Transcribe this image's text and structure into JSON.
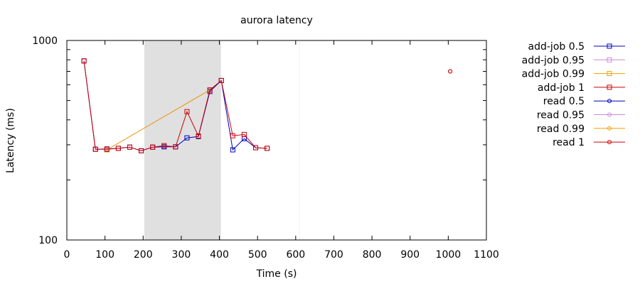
{
  "chart_data": {
    "type": "line",
    "title": "aurora latency",
    "xlabel": "Time (s)",
    "ylabel": "Latency (ms)",
    "xlim": [
      0,
      1100
    ],
    "ylim": [
      100,
      1000
    ],
    "yscale": "log",
    "x_ticks": [
      0,
      100,
      200,
      300,
      400,
      500,
      600,
      700,
      800,
      900,
      1000,
      1100
    ],
    "y_ticks": [
      100,
      1000
    ],
    "grid": false,
    "legend_position": "outside-right",
    "shaded_regions": [
      {
        "x_start": 203,
        "x_end": 404,
        "color": "#e0e0e0"
      }
    ],
    "vertical_lines": [
      {
        "x": 610,
        "color": "#eeeeee"
      }
    ],
    "series": [
      {
        "name": "add-job 0.5",
        "color": "#0000bb",
        "marker": "square",
        "points": [
          [
            45,
            790
          ],
          [
            75,
            285
          ],
          [
            105,
            286
          ],
          [
            135,
            288
          ],
          [
            165,
            292
          ],
          [
            195,
            280
          ],
          [
            225,
            292
          ],
          [
            255,
            293
          ],
          [
            285,
            293
          ],
          [
            315,
            325
          ],
          [
            345,
            330
          ],
          [
            375,
            555
          ],
          [
            405,
            630
          ],
          [
            435,
            283
          ],
          [
            465,
            322
          ],
          [
            495,
            290
          ],
          [
            525,
            288
          ]
        ]
      },
      {
        "name": "add-job 0.95",
        "color": "#cc88dd",
        "marker": "square",
        "points": [
          [
            105,
            283
          ],
          [
            375,
            565
          ]
        ]
      },
      {
        "name": "add-job 0.99",
        "color": "#f0a000",
        "marker": "square",
        "points": [
          [
            105,
            283
          ],
          [
            375,
            565
          ]
        ]
      },
      {
        "name": "add-job 1",
        "color": "#cc0000",
        "marker": "square",
        "points": [
          [
            45,
            790
          ],
          [
            75,
            285
          ],
          [
            105,
            285
          ],
          [
            135,
            288
          ],
          [
            165,
            292
          ],
          [
            195,
            280
          ],
          [
            225,
            292
          ],
          [
            255,
            297
          ],
          [
            285,
            293
          ],
          [
            315,
            440
          ],
          [
            345,
            332
          ],
          [
            375,
            565
          ],
          [
            405,
            630
          ],
          [
            435,
            333
          ],
          [
            465,
            338
          ],
          [
            495,
            290
          ],
          [
            525,
            288
          ]
        ]
      },
      {
        "name": "read 0.5",
        "color": "#0000bb",
        "marker": "circle",
        "points": [
          [
            1005,
            700
          ]
        ]
      },
      {
        "name": "read 0.95",
        "color": "#cc88dd",
        "marker": "circle",
        "points": [
          [
            1005,
            700
          ]
        ]
      },
      {
        "name": "read 0.99",
        "color": "#f0a000",
        "marker": "circle",
        "points": [
          [
            1005,
            700
          ]
        ]
      },
      {
        "name": "read 1",
        "color": "#cc0000",
        "marker": "circle",
        "points": [
          [
            1005,
            700
          ]
        ]
      }
    ]
  }
}
